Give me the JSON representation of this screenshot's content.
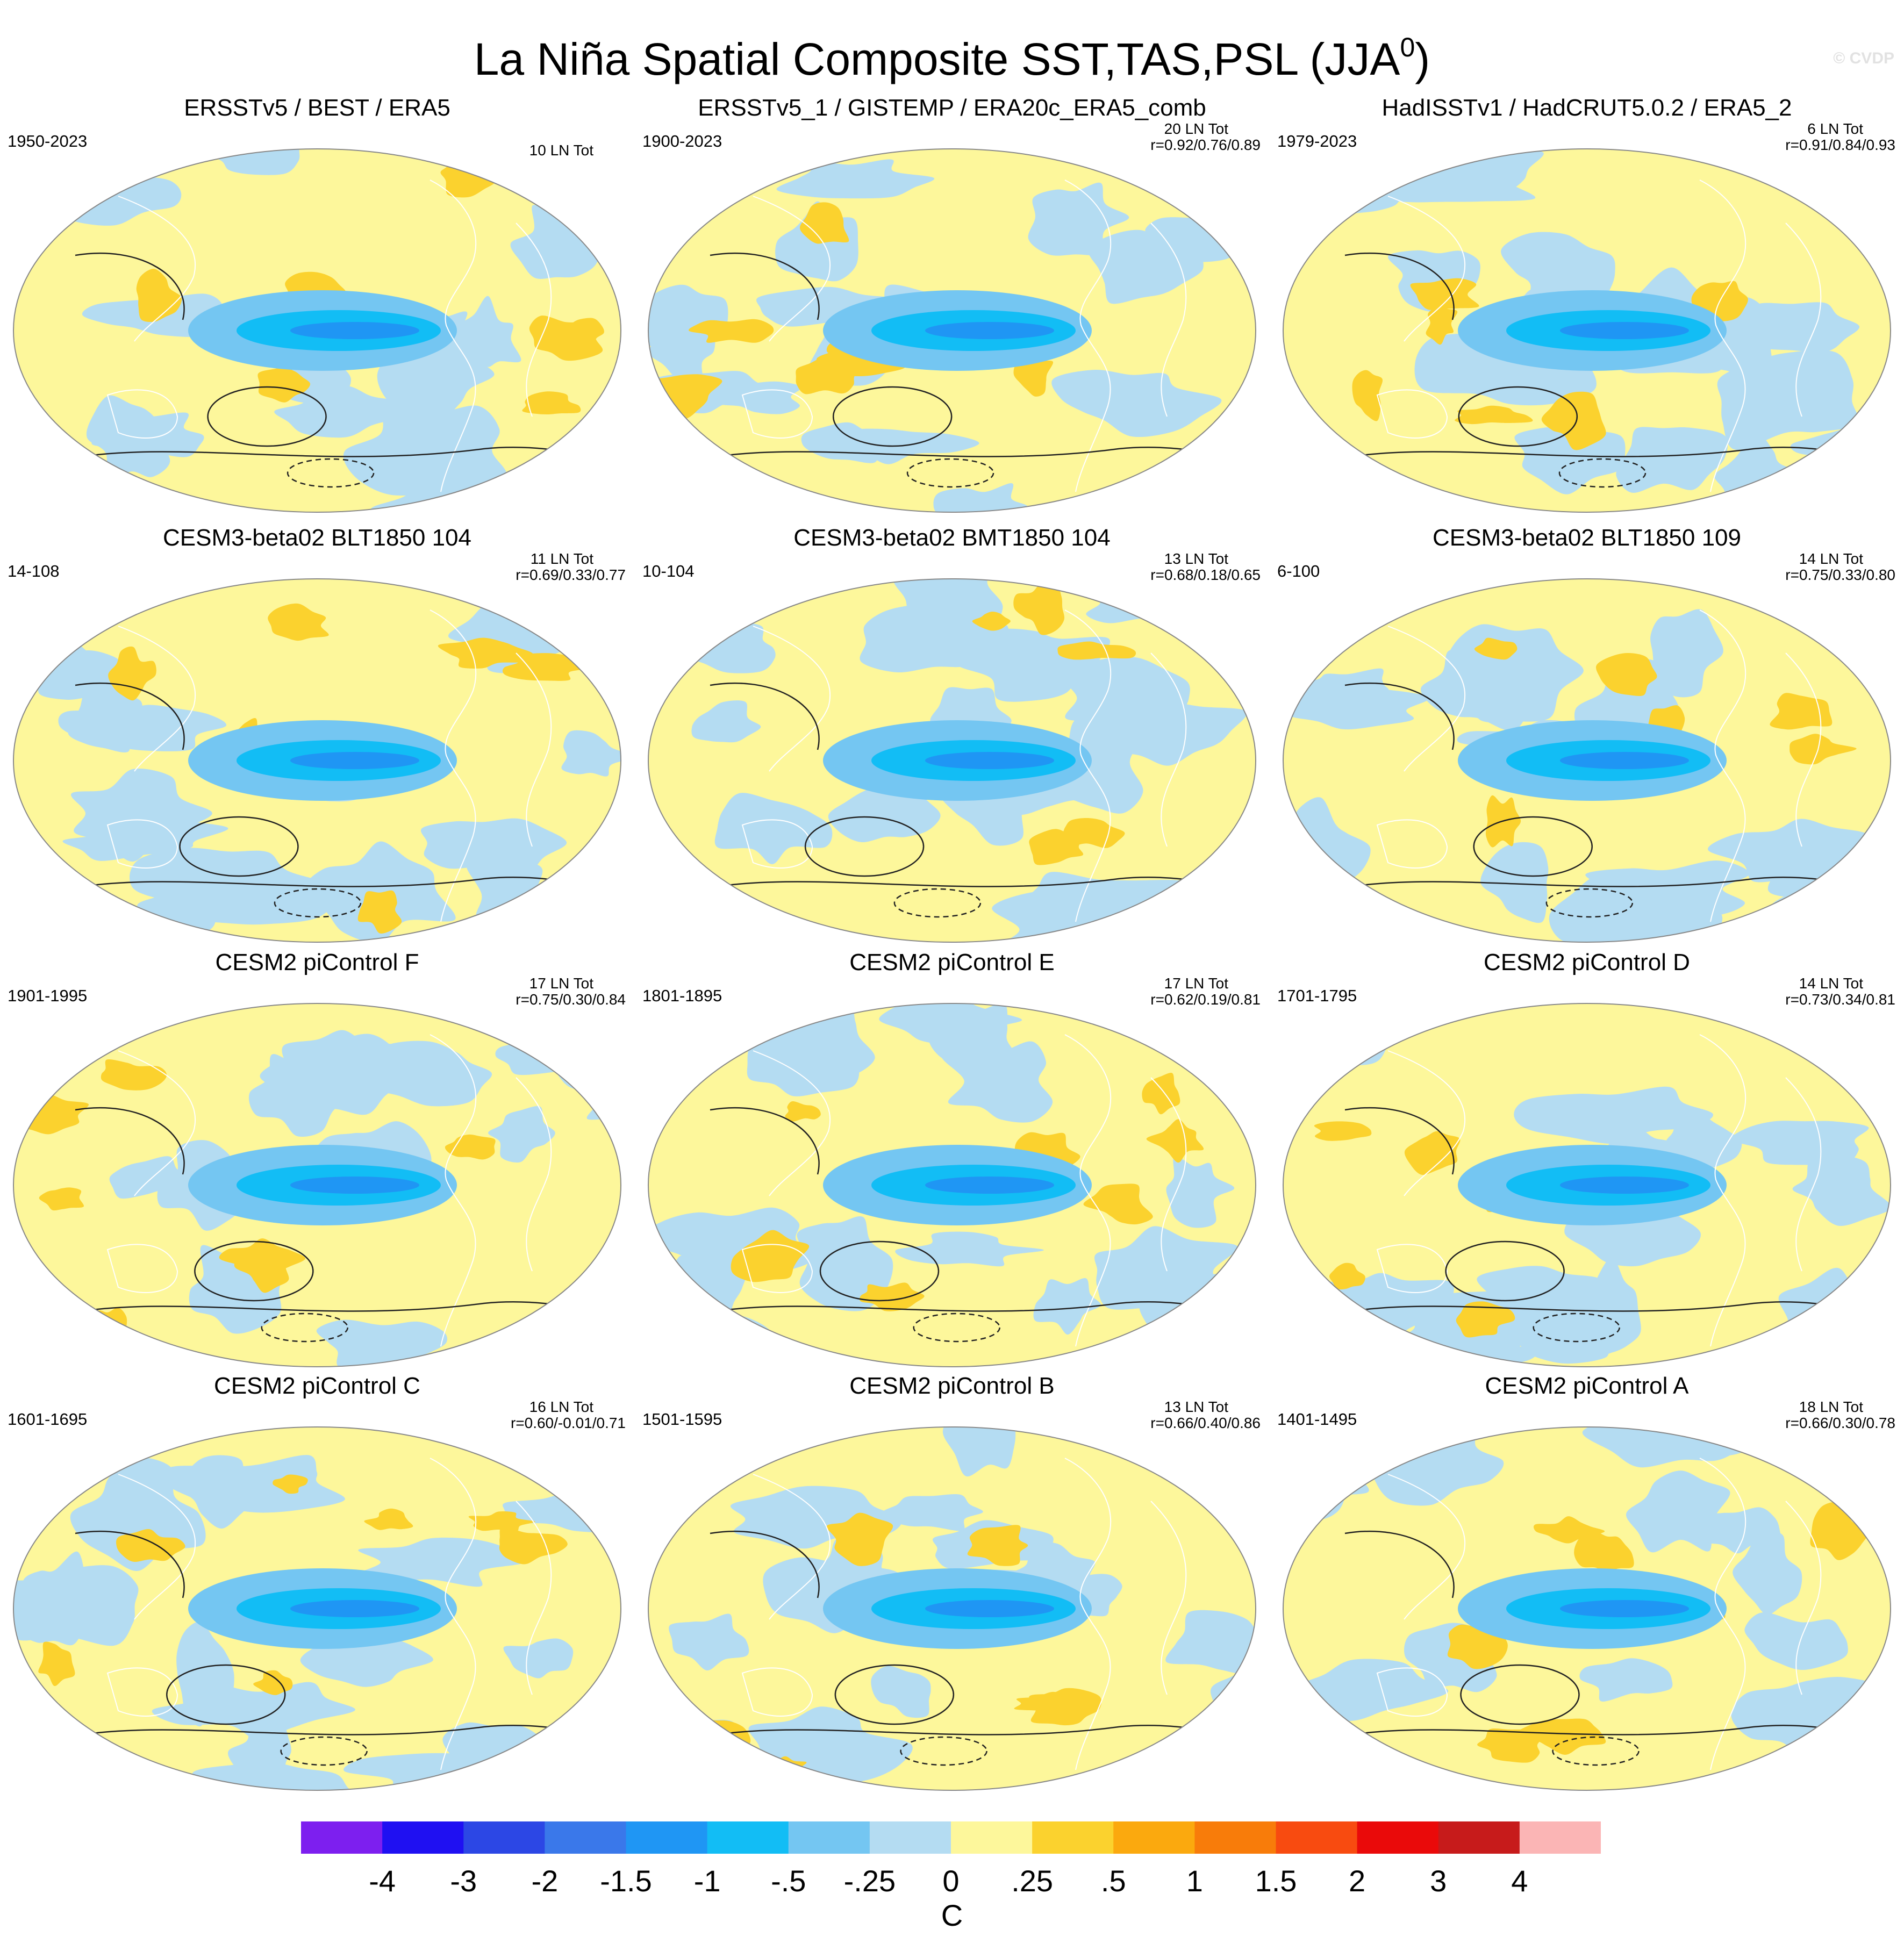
{
  "title": "La Niña Spatial Composite SST,TAS,PSL (JJA",
  "title_sup": "0",
  "title_close": ")",
  "credit": "© CVDP",
  "panels": [
    {
      "title": "ERSSTv5 / BEST / ERA5",
      "years": "1950-2023",
      "count": "10 LN Tot",
      "corr": ""
    },
    {
      "title": "ERSSTv5_1 / GISTEMP / ERA20c_ERA5_comb",
      "years": "1900-2023",
      "count": "20 LN Tot",
      "corr": "r=0.92/0.76/0.89"
    },
    {
      "title": "HadISSTv1 / HadCRUT5.0.2 / ERA5_2",
      "years": "1979-2023",
      "count": "6 LN Tot",
      "corr": "r=0.91/0.84/0.93"
    },
    {
      "title": "CESM3-beta02 BLT1850 104",
      "years": "14-108",
      "count": "11 LN Tot",
      "corr": "r=0.69/0.33/0.77"
    },
    {
      "title": "CESM3-beta02 BMT1850 104",
      "years": "10-104",
      "count": "13 LN Tot",
      "corr": "r=0.68/0.18/0.65"
    },
    {
      "title": "CESM3-beta02 BLT1850 109",
      "years": "6-100",
      "count": "14 LN Tot",
      "corr": "r=0.75/0.33/0.80"
    },
    {
      "title": "CESM2 piControl F",
      "years": "1901-1995",
      "count": "17 LN Tot",
      "corr": "r=0.75/0.30/0.84"
    },
    {
      "title": "CESM2 piControl E",
      "years": "1801-1895",
      "count": "17 LN Tot",
      "corr": "r=0.62/0.19/0.81"
    },
    {
      "title": "CESM2 piControl D",
      "years": "1701-1795",
      "count": "14 LN Tot",
      "corr": "r=0.73/0.34/0.81"
    },
    {
      "title": "CESM2 piControl C",
      "years": "1601-1695",
      "count": "16 LN Tot",
      "corr": "r=0.60/-0.01/0.71"
    },
    {
      "title": "CESM2 piControl B",
      "years": "1501-1595",
      "count": "13 LN Tot",
      "corr": "r=0.66/0.40/0.86"
    },
    {
      "title": "CESM2 piControl A",
      "years": "1401-1495",
      "count": "18 LN Tot",
      "corr": "r=0.66/0.30/0.78"
    }
  ],
  "colorbar": {
    "unit": "C",
    "labels": [
      "-4",
      "-3",
      "-2",
      "-1.5",
      "-1",
      "-.5",
      "-.25",
      "0",
      ".25",
      ".5",
      "1",
      "1.5",
      "2",
      "3",
      "4"
    ],
    "colors": [
      "#7d1fef",
      "#1f10f2",
      "#2c47e5",
      "#3a78ea",
      "#1f96f4",
      "#12bdf5",
      "#74c6f2",
      "#b4dcf2",
      "#fdf79b",
      "#fbd22e",
      "#fba90e",
      "#f87c0a",
      "#f84b10",
      "#ea0a0a",
      "#c71b1b",
      "#fbb5b5"
    ]
  }
}
